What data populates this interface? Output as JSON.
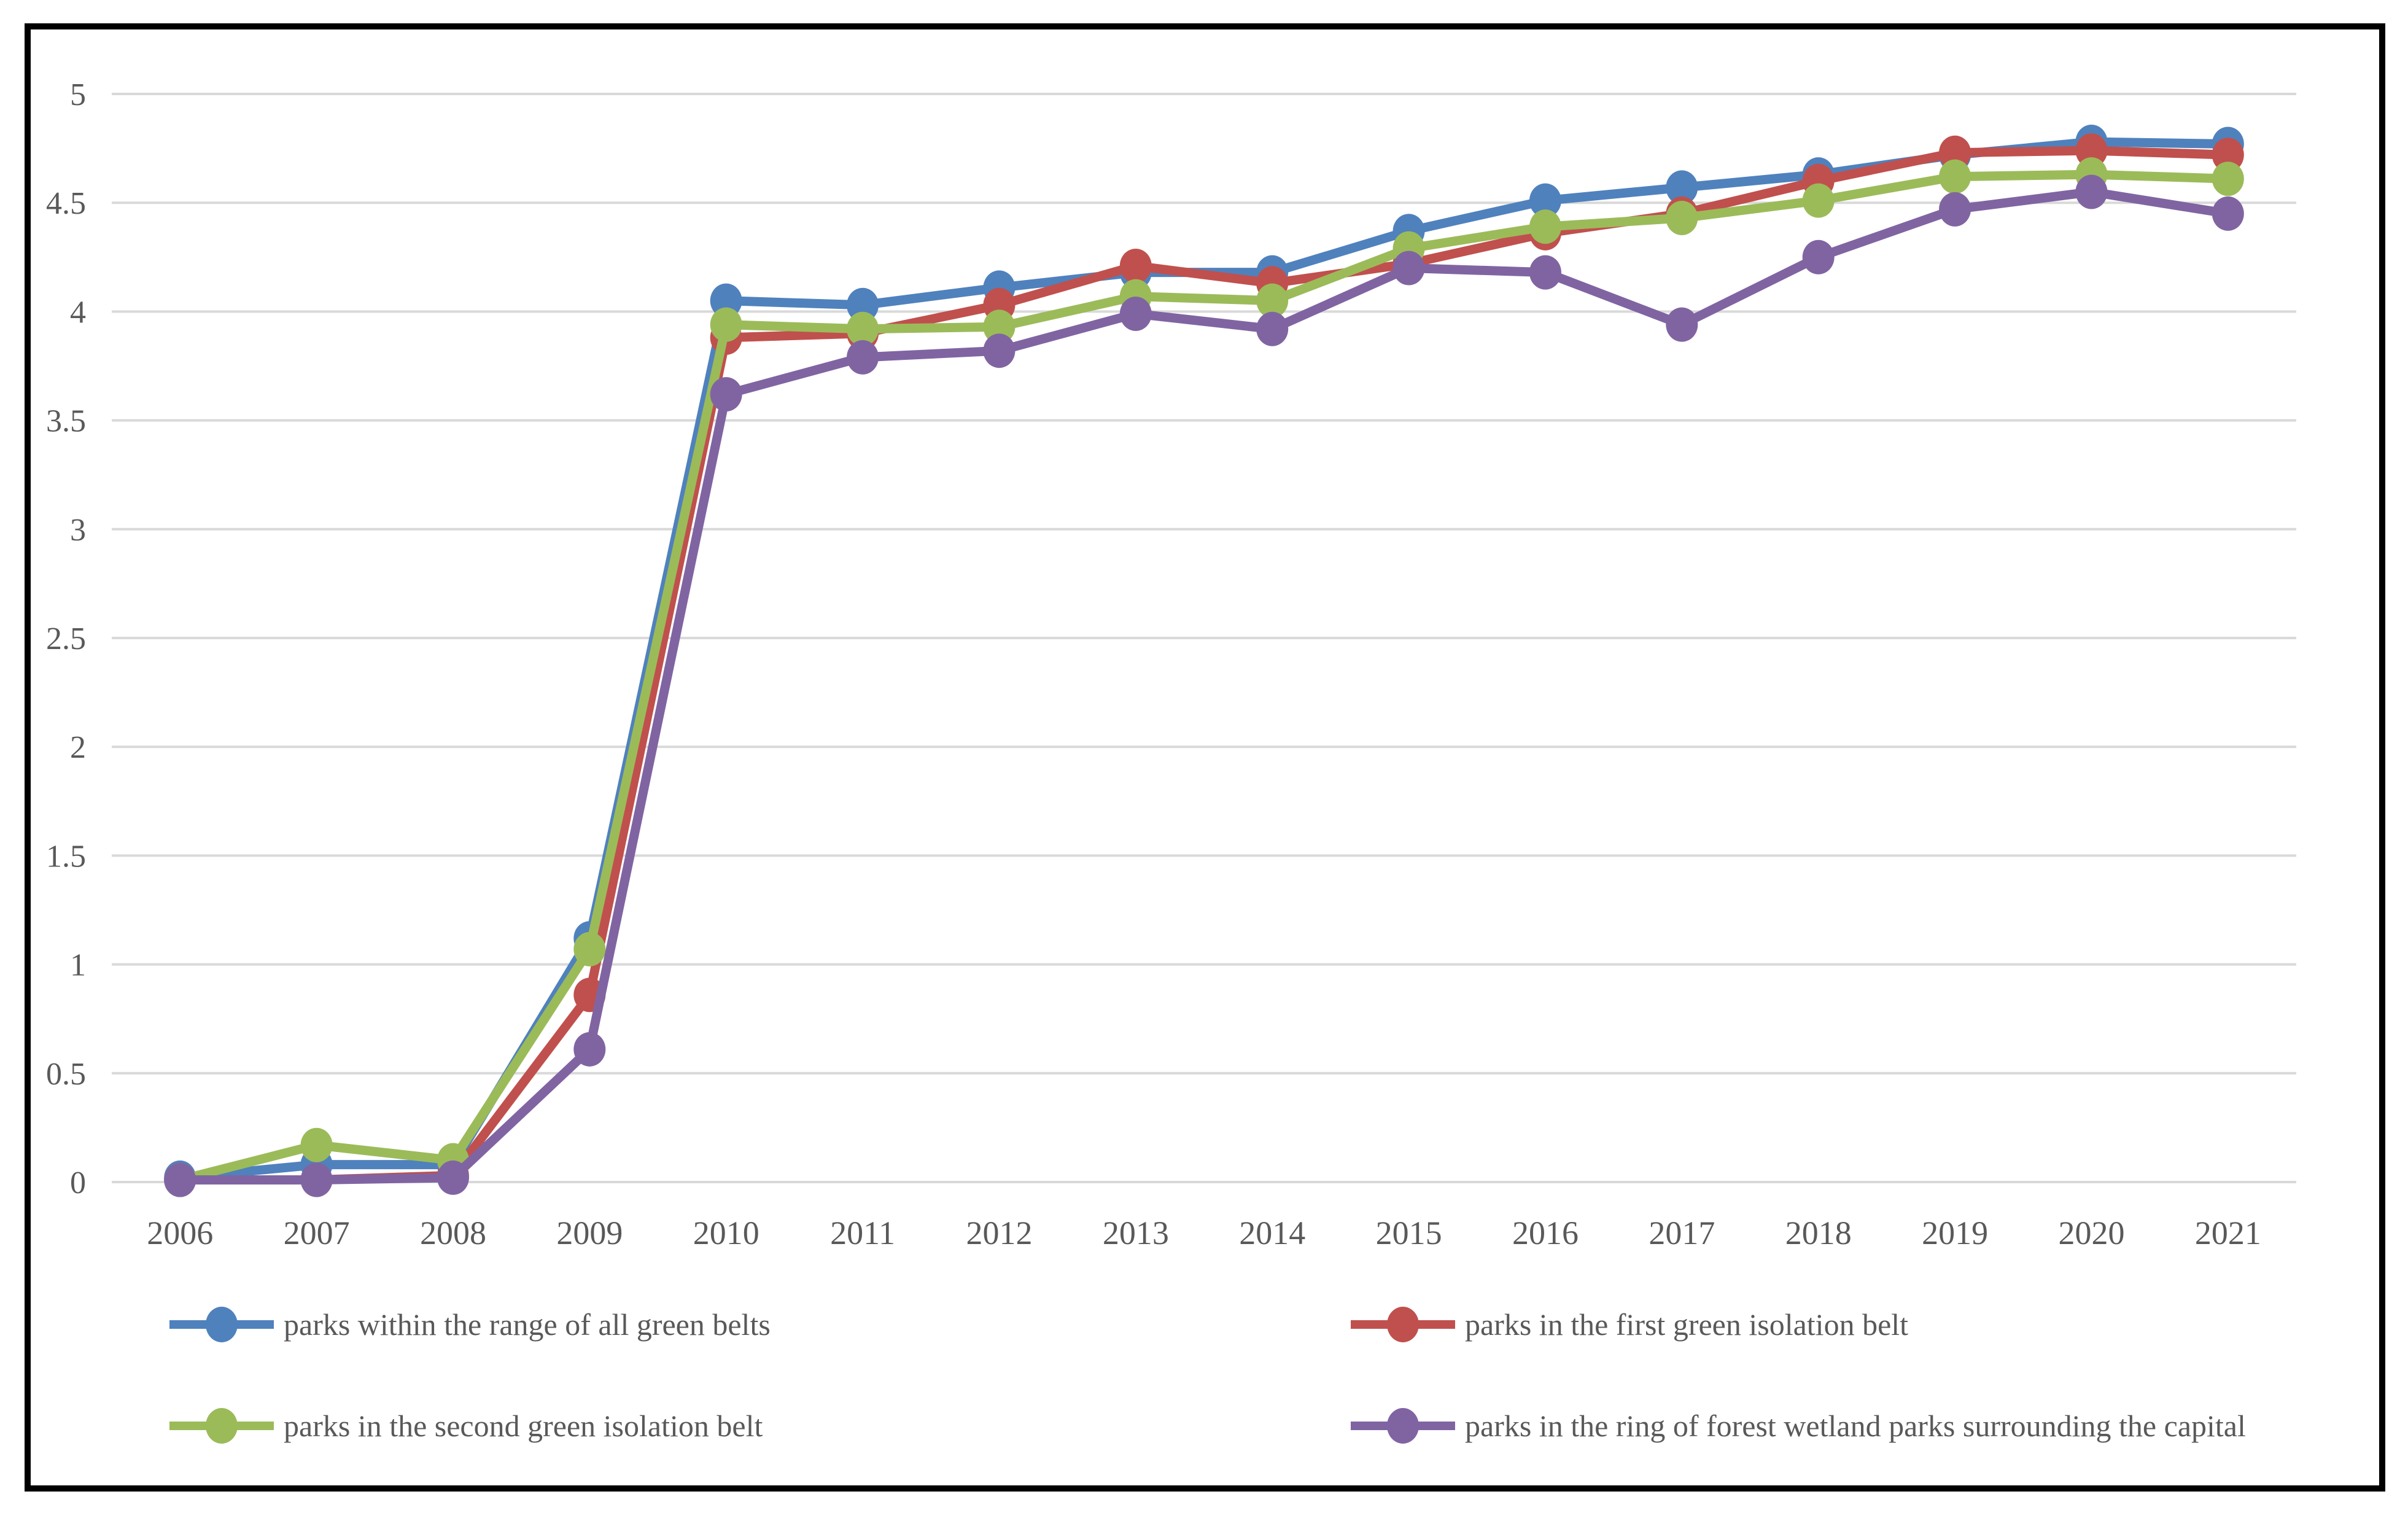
{
  "figure": {
    "background": "#ffffff",
    "border_color": "#000000",
    "axis_text_color": "#595959",
    "gridline_color": "#d9d9d9"
  },
  "chart_data": {
    "type": "line",
    "title": "",
    "xlabel": "",
    "ylabel": "",
    "categories": [
      "2006",
      "2007",
      "2008",
      "2009",
      "2010",
      "2011",
      "2012",
      "2013",
      "2014",
      "2015",
      "2016",
      "2017",
      "2018",
      "2019",
      "2020",
      "2021"
    ],
    "y_axis": {
      "min": 0,
      "max": 5,
      "step": 0.5,
      "tick_labels": [
        "0",
        "0.5",
        "1",
        "1.5",
        "2",
        "2.5",
        "3",
        "3.5",
        "4",
        "4.5",
        "5"
      ]
    },
    "grid": true,
    "legend_position": "bottom",
    "marker": "circle",
    "series": [
      {
        "name": "parks within the range of all green belts",
        "color": "#4F81BD",
        "values": [
          0.02,
          0.08,
          0.08,
          1.12,
          4.05,
          4.03,
          4.11,
          4.18,
          4.18,
          4.37,
          4.51,
          4.57,
          4.63,
          4.72,
          4.78,
          4.77
        ]
      },
      {
        "name": "parks in the first green isolation belt",
        "color": "#C0504D",
        "values": [
          0.01,
          0.01,
          0.03,
          0.86,
          3.88,
          3.9,
          4.03,
          4.21,
          4.13,
          4.22,
          4.36,
          4.45,
          4.6,
          4.73,
          4.74,
          4.72
        ]
      },
      {
        "name": "parks in the second green isolation belt",
        "color": "#9BBB59",
        "values": [
          0.01,
          0.17,
          0.1,
          1.07,
          3.94,
          3.92,
          3.93,
          4.07,
          4.05,
          4.29,
          4.39,
          4.43,
          4.51,
          4.62,
          4.63,
          4.61
        ]
      },
      {
        "name": "parks in the ring of forest wetland parks surrounding the capital",
        "color": "#8064A2",
        "values": [
          0.01,
          0.01,
          0.02,
          0.61,
          3.62,
          3.79,
          3.82,
          3.99,
          3.92,
          4.2,
          4.18,
          3.94,
          4.25,
          4.47,
          4.55,
          4.45
        ]
      }
    ]
  },
  "legend": {
    "items": [
      {
        "label": "parks within the range of all green belts"
      },
      {
        "label": "parks in the first green isolation belt"
      },
      {
        "label": "parks in the second green isolation belt"
      },
      {
        "label": "parks in the ring of forest wetland parks surrounding the capital"
      }
    ]
  }
}
